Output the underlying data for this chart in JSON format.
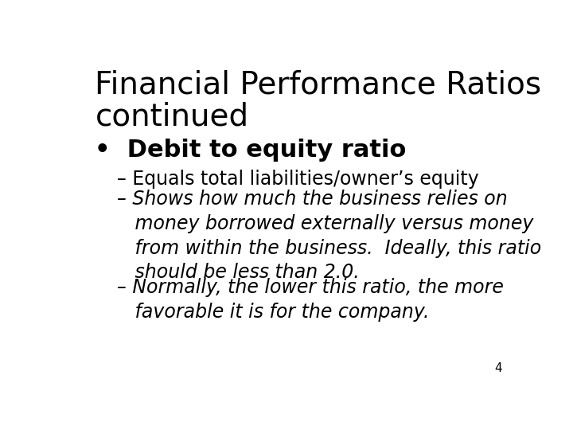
{
  "background_color": "#ffffff",
  "title_line1": "Financial Performance Ratios",
  "title_line2": "continued",
  "title_fontsize": 28,
  "bullet_text": "Debit to equity ratio",
  "bullet_fontsize": 22,
  "sub_items": [
    {
      "text": "– Equals total liabilities/owner’s equity",
      "italic": false,
      "fontsize": 17
    },
    {
      "text": "– Shows how much the business relies on\n   money borrowed externally versus money\n   from within the business.  Ideally, this ratio\n   should be less than 2.0.",
      "italic": true,
      "fontsize": 17
    },
    {
      "text": "– Normally, the lower this ratio, the more\n   favorable it is for the company.",
      "italic": true,
      "fontsize": 17
    }
  ],
  "page_number": "4",
  "page_number_fontsize": 11,
  "text_color": "#000000"
}
